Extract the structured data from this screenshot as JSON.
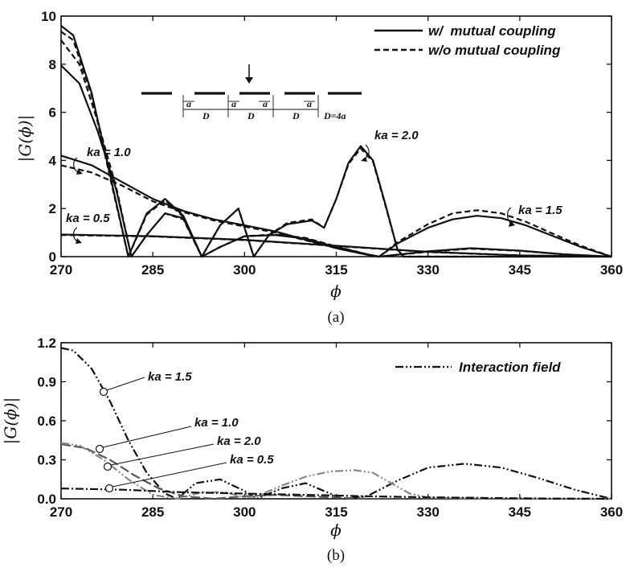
{
  "chart_data": [
    {
      "id": "a",
      "type": "line",
      "caption": "(a)",
      "xlabel": "ϕ",
      "ylabel": "|G(ϕ)|",
      "xlim": [
        270,
        360
      ],
      "ylim": [
        0,
        10
      ],
      "xticks": [
        270,
        285,
        300,
        315,
        330,
        345,
        360
      ],
      "yticks": [
        0,
        2,
        4,
        6,
        8,
        10
      ],
      "legend_position": "top-right",
      "legend": [
        {
          "label": "w/  mutual coupling",
          "style": "solid"
        },
        {
          "label": "w/o mutual coupling",
          "style": "dashed"
        }
      ],
      "annotations": [
        "ka = 0.5",
        "ka = 1.0",
        "ka = 2.0",
        "ka = 1.5"
      ],
      "inset": {
        "labels": [
          "a",
          "a",
          "a",
          "a",
          "D",
          "D",
          "D",
          "D=4a"
        ]
      },
      "series": [
        {
          "ka": "0.5",
          "coupling": "with",
          "points": [
            [
              270,
              0.92
            ],
            [
              285,
              0.85
            ],
            [
              300,
              0.7
            ],
            [
              315,
              0.45
            ],
            [
              330,
              0.2
            ],
            [
              345,
              0.05
            ],
            [
              360,
              0
            ]
          ]
        },
        {
          "ka": "0.5",
          "coupling": "without",
          "points": [
            [
              270,
              0.9
            ],
            [
              285,
              0.84
            ],
            [
              300,
              0.69
            ],
            [
              315,
              0.44
            ],
            [
              330,
              0.19
            ],
            [
              345,
              0.05
            ],
            [
              360,
              0
            ]
          ]
        },
        {
          "ka": "1.0",
          "coupling": "with",
          "points": [
            [
              270,
              4.2
            ],
            [
              275,
              3.8
            ],
            [
              280,
              3.1
            ],
            [
              285,
              2.4
            ],
            [
              290,
              1.9
            ],
            [
              295,
              1.55
            ],
            [
              300,
              1.3
            ],
            [
              305,
              1.05
            ],
            [
              310,
              0.7
            ],
            [
              315,
              0.35
            ],
            [
              320,
              0.08
            ],
            [
              322,
              0
            ],
            [
              330,
              0.22
            ],
            [
              337,
              0.35
            ],
            [
              345,
              0.25
            ],
            [
              352,
              0.1
            ],
            [
              360,
              0
            ]
          ]
        },
        {
          "ka": "1.0",
          "coupling": "without",
          "points": [
            [
              270,
              3.8
            ],
            [
              275,
              3.5
            ],
            [
              280,
              2.95
            ],
            [
              285,
              2.3
            ],
            [
              290,
              1.85
            ],
            [
              295,
              1.5
            ],
            [
              300,
              1.25
            ],
            [
              305,
              1.0
            ],
            [
              310,
              0.68
            ],
            [
              315,
              0.35
            ],
            [
              320,
              0.08
            ],
            [
              322,
              0
            ],
            [
              330,
              0.2
            ],
            [
              337,
              0.33
            ],
            [
              345,
              0.24
            ],
            [
              352,
              0.1
            ],
            [
              360,
              0
            ]
          ]
        },
        {
          "ka": "1.5",
          "coupling": "with",
          "points": [
            [
              270,
              7.95
            ],
            [
              273,
              7.2
            ],
            [
              276,
              5.2
            ],
            [
              279,
              2.8
            ],
            [
              281.5,
              0
            ],
            [
              284,
              0.9
            ],
            [
              287,
              1.8
            ],
            [
              290,
              1.6
            ],
            [
              293,
              0
            ],
            [
              296,
              0.4
            ],
            [
              300,
              0.85
            ],
            [
              305,
              0.9
            ],
            [
              310,
              0.75
            ],
            [
              315,
              0.4
            ],
            [
              320,
              0.1
            ],
            [
              322,
              0
            ],
            [
              325,
              0.55
            ],
            [
              330,
              1.2
            ],
            [
              334,
              1.55
            ],
            [
              338,
              1.7
            ],
            [
              342,
              1.6
            ],
            [
              346,
              1.3
            ],
            [
              350,
              0.9
            ],
            [
              355,
              0.4
            ],
            [
              360,
              0
            ]
          ]
        },
        {
          "ka": "1.5",
          "coupling": "without",
          "points": [
            [
              270,
              9.0
            ],
            [
              273,
              8.0
            ],
            [
              276,
              5.6
            ],
            [
              279,
              2.9
            ],
            [
              281.5,
              0
            ],
            [
              284,
              0.9
            ],
            [
              287,
              1.8
            ],
            [
              290,
              1.55
            ],
            [
              293,
              0
            ],
            [
              296,
              0.4
            ],
            [
              300,
              0.85
            ],
            [
              305,
              0.92
            ],
            [
              310,
              0.78
            ],
            [
              315,
              0.42
            ],
            [
              320,
              0.1
            ],
            [
              322,
              0
            ],
            [
              325,
              0.6
            ],
            [
              330,
              1.35
            ],
            [
              334,
              1.8
            ],
            [
              338,
              1.93
            ],
            [
              342,
              1.8
            ],
            [
              346,
              1.45
            ],
            [
              350,
              1.0
            ],
            [
              355,
              0.45
            ],
            [
              360,
              0
            ]
          ]
        },
        {
          "ka": "2.0",
          "coupling": "with",
          "points": [
            [
              270,
              9.6
            ],
            [
              272,
              9.2
            ],
            [
              275,
              6.8
            ],
            [
              278,
              3.4
            ],
            [
              281,
              0
            ],
            [
              284,
              1.8
            ],
            [
              287,
              2.4
            ],
            [
              290,
              1.7
            ],
            [
              293,
              0
            ],
            [
              296,
              1.3
            ],
            [
              299,
              2.0
            ],
            [
              301.5,
              0
            ],
            [
              304,
              0.9
            ],
            [
              307,
              1.35
            ],
            [
              311,
              1.5
            ],
            [
              313,
              1.2
            ],
            [
              315,
              2.4
            ],
            [
              317,
              3.9
            ],
            [
              319,
              4.6
            ],
            [
              321,
              4.0
            ],
            [
              323,
              2.2
            ],
            [
              325,
              0.3
            ],
            [
              326,
              0
            ],
            [
              329,
              0
            ],
            [
              360,
              0
            ]
          ]
        },
        {
          "ka": "2.0",
          "coupling": "without",
          "points": [
            [
              270,
              9.35
            ],
            [
              272,
              9.0
            ],
            [
              275,
              6.7
            ],
            [
              278,
              3.3
            ],
            [
              281,
              0
            ],
            [
              284,
              1.75
            ],
            [
              287,
              2.35
            ],
            [
              290,
              1.65
            ],
            [
              293,
              0
            ],
            [
              296,
              1.3
            ],
            [
              299,
              2.0
            ],
            [
              301.5,
              0
            ],
            [
              304,
              0.9
            ],
            [
              307,
              1.4
            ],
            [
              311,
              1.55
            ],
            [
              313,
              1.2
            ],
            [
              315,
              2.4
            ],
            [
              317,
              3.85
            ],
            [
              319,
              4.5
            ],
            [
              321,
              3.95
            ],
            [
              323,
              2.15
            ],
            [
              325,
              0.3
            ],
            [
              326,
              0
            ],
            [
              329,
              0
            ],
            [
              360,
              0
            ]
          ]
        }
      ]
    },
    {
      "id": "b",
      "type": "line",
      "caption": "(b)",
      "xlabel": "ϕ",
      "ylabel": "|G(ϕ)|",
      "xlim": [
        270,
        360
      ],
      "ylim": [
        0,
        1.2
      ],
      "xticks": [
        270,
        285,
        300,
        315,
        330,
        345,
        360
      ],
      "yticks": [
        "0.0",
        "0.3",
        "0.6",
        "0.9",
        "1.2"
      ],
      "legend_position": "top-right",
      "legend": [
        {
          "label": "Interaction field",
          "style": "dash-dot-dot"
        }
      ],
      "annotations": [
        "ka = 1.5",
        "ka = 1.0",
        "ka = 2.0",
        "ka = 0.5"
      ],
      "series": [
        {
          "ka": "1.5",
          "color": "#111111",
          "dash": "dashdotdot",
          "points": [
            [
              270,
              1.16
            ],
            [
              272,
              1.14
            ],
            [
              275,
              1.0
            ],
            [
              278,
              0.75
            ],
            [
              281,
              0.45
            ],
            [
              284,
              0.2
            ],
            [
              287,
              0.04
            ],
            [
              289,
              0
            ],
            [
              292,
              0.12
            ],
            [
              296,
              0.15
            ],
            [
              300,
              0.06
            ],
            [
              302,
              0
            ],
            [
              306,
              0.08
            ],
            [
              310,
              0.12
            ],
            [
              313,
              0.06
            ],
            [
              316,
              0
            ],
            [
              320,
              0.02
            ],
            [
              325,
              0.14
            ],
            [
              330,
              0.24
            ],
            [
              336,
              0.27
            ],
            [
              342,
              0.24
            ],
            [
              348,
              0.16
            ],
            [
              354,
              0.07
            ],
            [
              360,
              0
            ]
          ]
        },
        {
          "ka": "1.0",
          "color": "#555555",
          "dash": "longdash",
          "points": [
            [
              270,
              0.42
            ],
            [
              274,
              0.39
            ],
            [
              278,
              0.3
            ],
            [
              282,
              0.18
            ],
            [
              286,
              0.08
            ],
            [
              290,
              0.02
            ],
            [
              295,
              0
            ],
            [
              300,
              0.02
            ],
            [
              305,
              0.03
            ],
            [
              310,
              0.02
            ],
            [
              315,
              0.01
            ],
            [
              320,
              0
            ],
            [
              330,
              0
            ],
            [
              360,
              0
            ]
          ]
        },
        {
          "ka": "2.0",
          "color": "#888888",
          "dash": "dashdotdot",
          "points": [
            [
              270,
              0.43
            ],
            [
              273,
              0.41
            ],
            [
              277,
              0.3
            ],
            [
              281,
              0.15
            ],
            [
              285,
              0.03
            ],
            [
              289,
              0
            ],
            [
              293,
              0.05
            ],
            [
              297,
              0.05
            ],
            [
              300,
              0.01
            ],
            [
              302,
              0.02
            ],
            [
              306,
              0.1
            ],
            [
              310,
              0.17
            ],
            [
              314,
              0.21
            ],
            [
              318,
              0.22
            ],
            [
              321,
              0.2
            ],
            [
              324,
              0.12
            ],
            [
              327,
              0.04
            ],
            [
              330,
              0.01
            ],
            [
              340,
              0
            ],
            [
              360,
              0
            ]
          ]
        },
        {
          "ka": "0.5",
          "color": "#111111",
          "dash": "dashdot",
          "points": [
            [
              270,
              0.08
            ],
            [
              280,
              0.07
            ],
            [
              290,
              0.05
            ],
            [
              300,
              0.04
            ],
            [
              310,
              0.03
            ],
            [
              320,
              0.02
            ],
            [
              330,
              0.012
            ],
            [
              340,
              0.006
            ],
            [
              350,
              0.002
            ],
            [
              360,
              0
            ]
          ]
        }
      ]
    }
  ]
}
